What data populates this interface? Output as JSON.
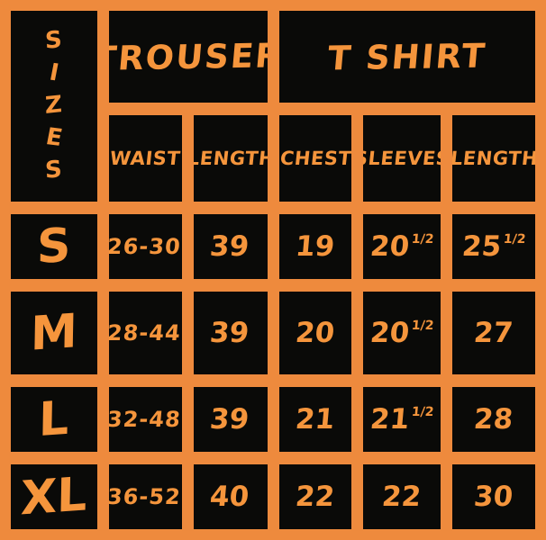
{
  "palette": {
    "background_orange": "#ee8a3d",
    "cell_black": "#0a0a08",
    "text_orange": "#f5953c"
  },
  "table": {
    "corner_letters": [
      "S",
      "I",
      "Z",
      "E",
      "S"
    ],
    "corner_word": "SIZES",
    "groups": [
      {
        "label": "TROUSER"
      },
      {
        "label": "T SHIRT"
      }
    ],
    "columns": [
      "WAIST",
      "LENGTH",
      "CHEST",
      "SLEEVES",
      "LENGTH"
    ],
    "rows": [
      {
        "size": "S",
        "values": [
          {
            "main": "26-30"
          },
          {
            "main": "39"
          },
          {
            "main": "19"
          },
          {
            "main": "20",
            "frac": "1/2"
          },
          {
            "main": "25",
            "frac": "1/2"
          }
        ]
      },
      {
        "size": "M",
        "values": [
          {
            "main": "28-44"
          },
          {
            "main": "39"
          },
          {
            "main": "20"
          },
          {
            "main": "20",
            "frac": "1/2"
          },
          {
            "main": "27"
          }
        ]
      },
      {
        "size": "L",
        "values": [
          {
            "main": "32-48"
          },
          {
            "main": "39"
          },
          {
            "main": "21"
          },
          {
            "main": "21",
            "frac": "1/2"
          },
          {
            "main": "28"
          }
        ]
      },
      {
        "size": "XL",
        "values": [
          {
            "main": "36-52"
          },
          {
            "main": "40"
          },
          {
            "main": "22"
          },
          {
            "main": "22"
          },
          {
            "main": "30"
          }
        ]
      }
    ]
  },
  "chart_data": {
    "type": "table",
    "title": "SIZES",
    "column_groups": [
      {
        "label": "TROUSER",
        "columns": [
          "WAIST",
          "LENGTH"
        ]
      },
      {
        "label": "T SHIRT",
        "columns": [
          "CHEST",
          "SLEEVES",
          "LENGTH"
        ]
      }
    ],
    "row_headers": [
      "S",
      "M",
      "L",
      "XL"
    ],
    "rows": [
      [
        "26-30",
        "39",
        "19",
        "20 1/2",
        "25 1/2"
      ],
      [
        "28-44",
        "39",
        "20",
        "20 1/2",
        "27"
      ],
      [
        "32-48",
        "39",
        "21",
        "21 1/2",
        "28"
      ],
      [
        "36-52",
        "40",
        "22",
        "22",
        "30"
      ]
    ]
  }
}
